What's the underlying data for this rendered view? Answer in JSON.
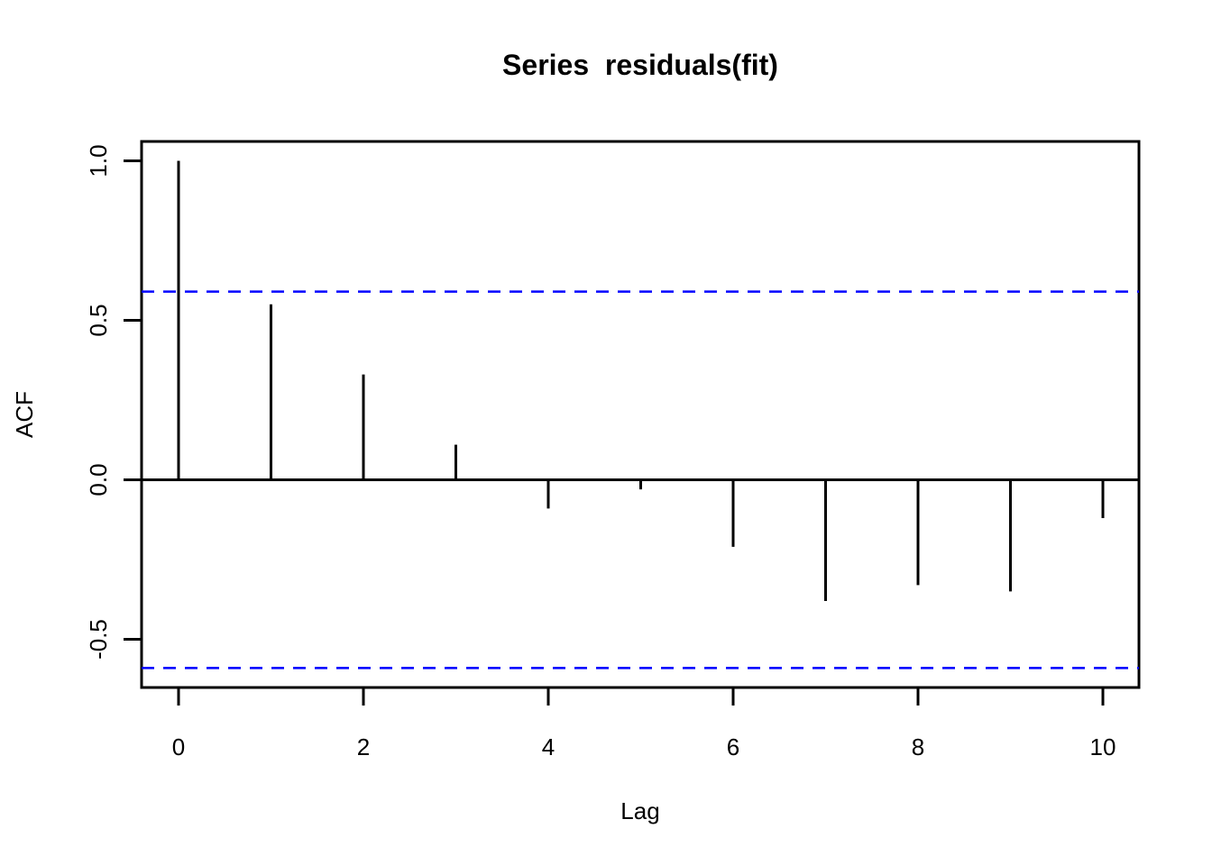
{
  "window": {
    "background_color": "#ffffff"
  },
  "chart_data": {
    "type": "bar",
    "subtype": "acf-stem-plot",
    "title": "Series  residuals(fit)",
    "xlabel": "Lag",
    "ylabel": "ACF",
    "x": [
      0,
      1,
      2,
      3,
      4,
      5,
      6,
      7,
      8,
      9,
      10
    ],
    "values": [
      1.0,
      0.55,
      0.33,
      0.11,
      -0.09,
      -0.03,
      -0.21,
      -0.38,
      -0.33,
      -0.35,
      -0.12
    ],
    "confidence_bounds": [
      0.59,
      -0.59
    ],
    "confidence_line_color": "#0000ff",
    "confidence_line_style": "dashed",
    "series_color": "#000000",
    "x_ticks": [
      0,
      2,
      4,
      6,
      8,
      10
    ],
    "x_tick_labels": [
      "0",
      "2",
      "4",
      "6",
      "8",
      "10"
    ],
    "y_ticks": [
      1.0,
      0.5,
      0.0,
      -0.5
    ],
    "y_tick_labels": [
      "1.0",
      "0.5",
      "0.0",
      "-0.5"
    ],
    "xlim": [
      -0.4,
      10.4
    ],
    "ylim": [
      -0.65,
      1.06
    ],
    "grid": false,
    "legend": null,
    "zero_line": 0.0
  }
}
